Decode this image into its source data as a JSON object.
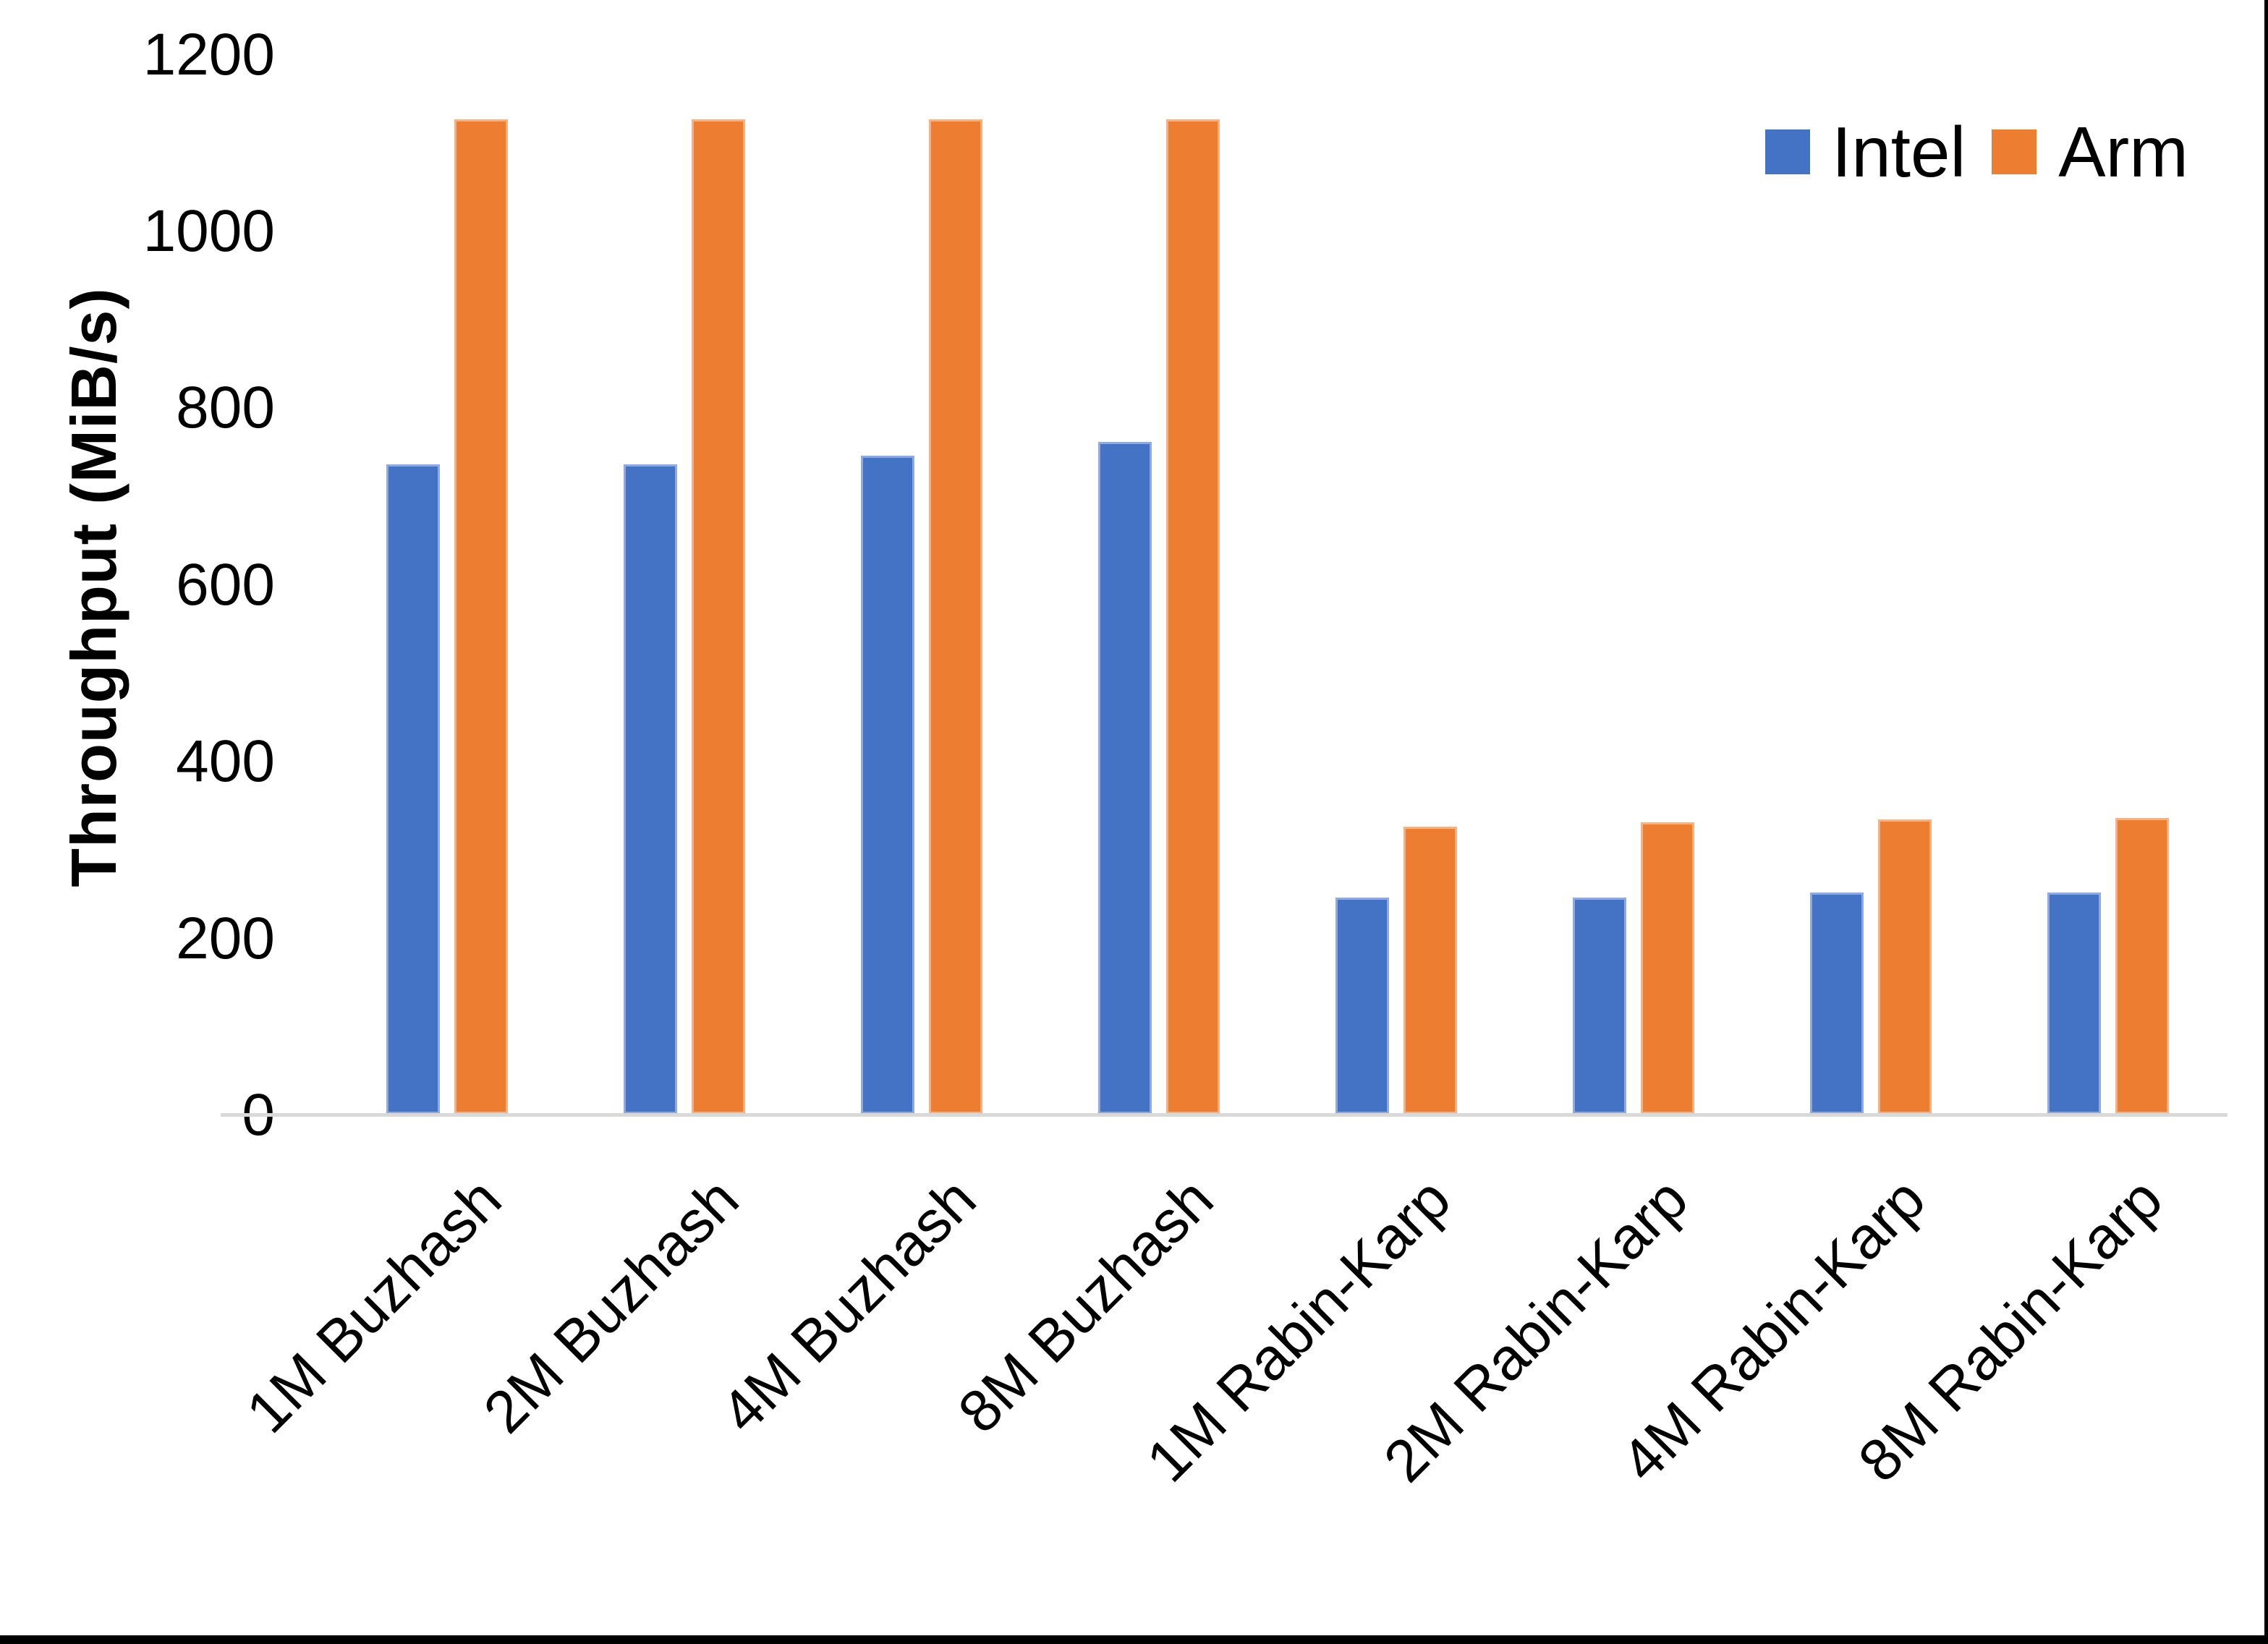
{
  "chart_data": {
    "type": "bar",
    "title": "",
    "xlabel": "",
    "ylabel": "Throughput (MiB/s)",
    "ylim": [
      0,
      1200
    ],
    "ytick_step": 200,
    "yticks": [
      0,
      200,
      400,
      600,
      800,
      1000,
      1200
    ],
    "grid": false,
    "legend_position": "top-right",
    "categories": [
      "1M Buzhash",
      "2M Buzhash",
      "4M Buzhash",
      "8M Buzhash",
      "1M Rabin-Karp",
      "2M Rabin-Karp",
      "4M Rabin-Karp",
      "8M Rabin-Karp"
    ],
    "series": [
      {
        "name": "Intel",
        "color": "#4472C4",
        "edge_color": "#8FAADC",
        "values": [
          735,
          735,
          745,
          760,
          245,
          245,
          250,
          250
        ]
      },
      {
        "name": "Arm",
        "color": "#ED7D31",
        "edge_color": "#F4B183",
        "values": [
          1125,
          1125,
          1125,
          1125,
          325,
          330,
          333,
          335
        ]
      }
    ]
  }
}
